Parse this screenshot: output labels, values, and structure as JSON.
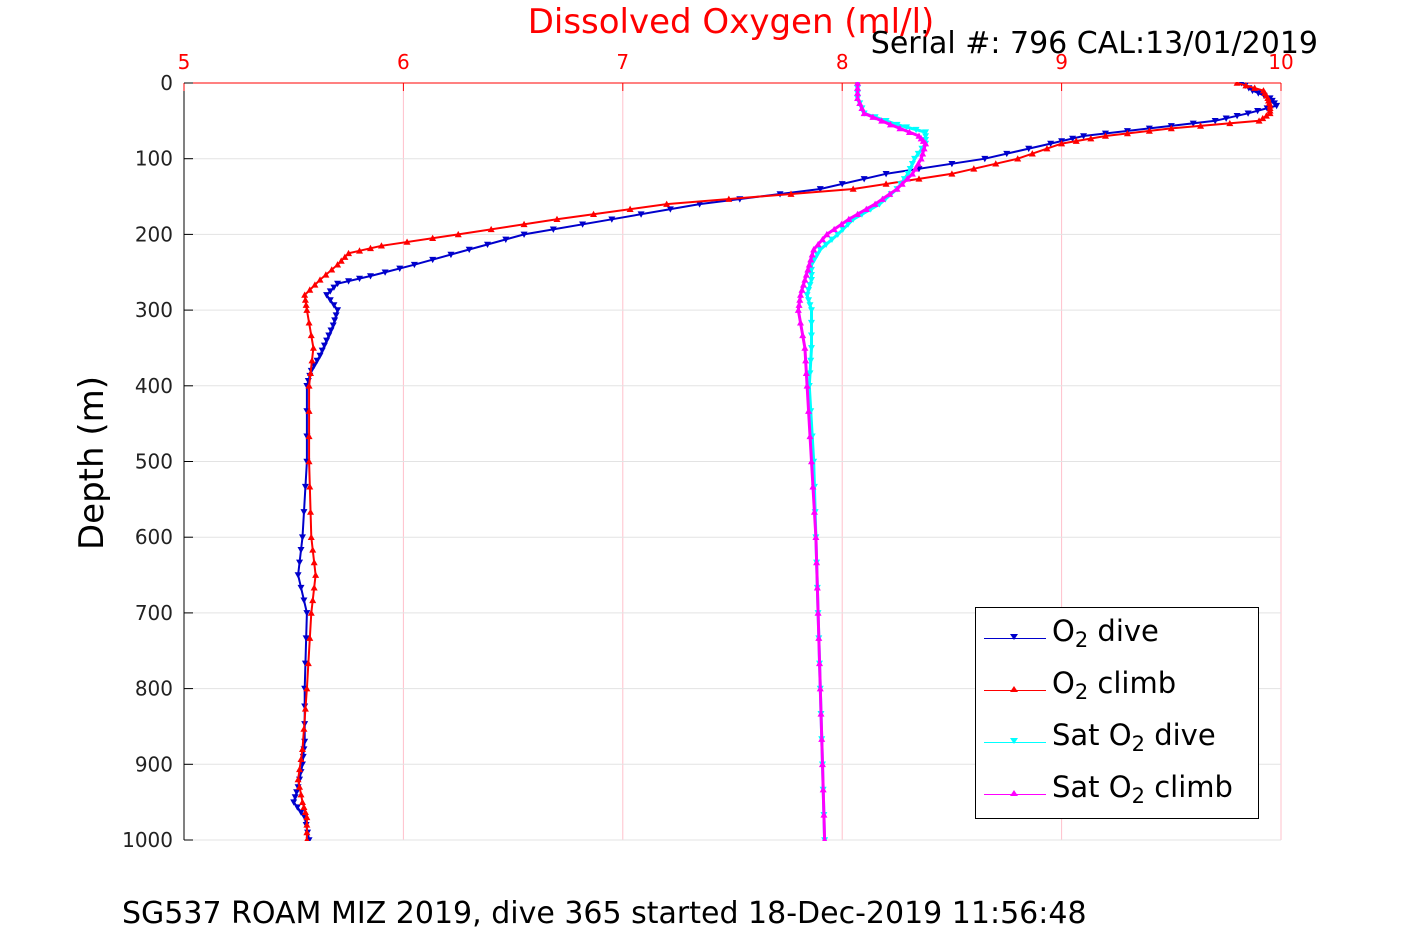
{
  "title": "Dissolved Oxygen (ml/l)",
  "serial": "Serial #: 796  CAL:13/01/2019",
  "footer": "SG537 ROAM MIZ 2019, dive 365 started 18-Dec-2019 11:56:48",
  "ylabel": "Depth (m)",
  "legend": [
    {
      "prefix": "O",
      "sub": "2",
      "suffix": " dive",
      "color": "#0000cc",
      "marker": "down"
    },
    {
      "prefix": "O",
      "sub": "2",
      "suffix": " climb",
      "color": "#ff0000",
      "marker": "up"
    },
    {
      "prefix": "Sat O",
      "sub": "2",
      "suffix": " dive",
      "color": "#00ffff",
      "marker": "down"
    },
    {
      "prefix": "Sat O",
      "sub": "2",
      "suffix": " climb",
      "color": "#ff00ff",
      "marker": "up"
    }
  ],
  "chart_data": {
    "type": "line",
    "xaxis_position": "top",
    "xlim": [
      5,
      10
    ],
    "ylim": [
      0,
      1000
    ],
    "y_reversed": true,
    "xticks": [
      5,
      6,
      7,
      8,
      9,
      10
    ],
    "yticks": [
      0,
      100,
      200,
      300,
      400,
      500,
      600,
      700,
      800,
      900,
      1000
    ],
    "xtick_color": "#ff0000",
    "grid": true,
    "series": [
      {
        "name": "O2 dive",
        "color": "#0000cc",
        "marker": "down",
        "depth": [
          0,
          10,
          20,
          30,
          40,
          50,
          60,
          70,
          80,
          100,
          120,
          140,
          160,
          180,
          200,
          220,
          240,
          255,
          265,
          280,
          300,
          320,
          340,
          360,
          380,
          400,
          500,
          600,
          650,
          700,
          800,
          870,
          900,
          930,
          950,
          970,
          1000
        ],
        "o2": [
          9.82,
          9.87,
          9.95,
          9.98,
          9.85,
          9.7,
          9.4,
          9.1,
          8.95,
          8.65,
          8.2,
          7.9,
          7.35,
          6.95,
          6.55,
          6.3,
          6.05,
          5.85,
          5.7,
          5.65,
          5.7,
          5.68,
          5.65,
          5.62,
          5.58,
          5.56,
          5.56,
          5.54,
          5.52,
          5.56,
          5.55,
          5.55,
          5.54,
          5.52,
          5.5,
          5.55,
          5.57
        ]
      },
      {
        "name": "O2 climb",
        "color": "#ff0000",
        "marker": "up",
        "depth": [
          0,
          10,
          20,
          30,
          40,
          50,
          60,
          70,
          80,
          100,
          120,
          140,
          160,
          180,
          200,
          215,
          225,
          240,
          260,
          280,
          300,
          350,
          400,
          500,
          600,
          650,
          700,
          800,
          880,
          920,
          950,
          970,
          1000
        ],
        "o2": [
          9.8,
          9.92,
          9.94,
          9.95,
          9.95,
          9.9,
          9.5,
          9.2,
          9.0,
          8.8,
          8.5,
          8.05,
          7.2,
          6.7,
          6.25,
          5.9,
          5.75,
          5.7,
          5.62,
          5.55,
          5.56,
          5.59,
          5.57,
          5.57,
          5.58,
          5.6,
          5.58,
          5.56,
          5.54,
          5.52,
          5.54,
          5.56,
          5.56
        ]
      },
      {
        "name": "Sat O2 dive",
        "color": "#00ffff",
        "marker": "down",
        "depth": [
          0,
          20,
          40,
          55,
          65,
          80,
          100,
          120,
          140,
          160,
          180,
          200,
          220,
          240,
          260,
          280,
          300,
          350,
          400,
          500,
          600,
          700,
          800,
          900,
          1000
        ],
        "sat": [
          8.07,
          8.07,
          8.1,
          8.25,
          8.38,
          8.38,
          8.33,
          8.3,
          8.25,
          8.17,
          8.05,
          7.98,
          7.9,
          7.86,
          7.86,
          7.84,
          7.86,
          7.86,
          7.85,
          7.87,
          7.88,
          7.89,
          7.9,
          7.91,
          7.92
        ]
      },
      {
        "name": "Sat O2 climb",
        "color": "#ff00ff",
        "marker": "up",
        "depth": [
          0,
          20,
          40,
          55,
          70,
          80,
          100,
          120,
          140,
          160,
          180,
          200,
          220,
          240,
          260,
          280,
          300,
          350,
          400,
          500,
          600,
          700,
          800,
          900,
          1000
        ],
        "sat": [
          8.07,
          8.07,
          8.1,
          8.22,
          8.35,
          8.38,
          8.36,
          8.32,
          8.25,
          8.15,
          8.03,
          7.93,
          7.87,
          7.85,
          7.83,
          7.81,
          7.8,
          7.83,
          7.84,
          7.86,
          7.88,
          7.89,
          7.9,
          7.91,
          7.92
        ]
      }
    ]
  }
}
